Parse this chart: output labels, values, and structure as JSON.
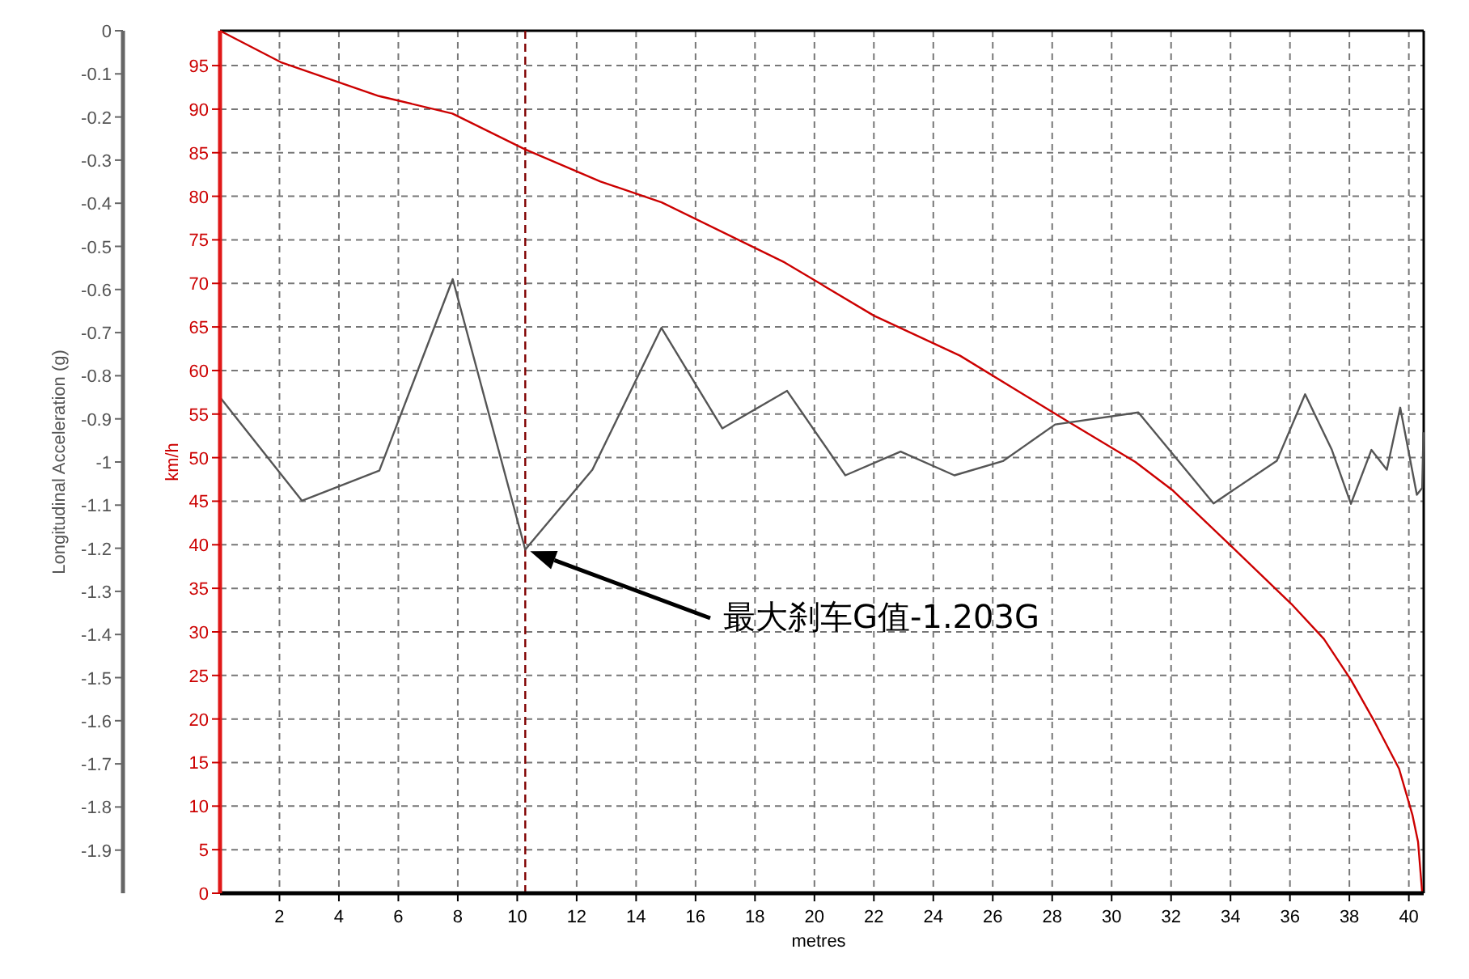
{
  "chart_data": {
    "type": "line",
    "xlabel": "metres",
    "ylabel": "km/h",
    "y2label": "Longitudinal Acceleration (g)",
    "xlim": [
      0,
      40.5
    ],
    "xticks": [
      2,
      4,
      6,
      8,
      10,
      12,
      14,
      16,
      18,
      20,
      22,
      24,
      26,
      28,
      30,
      32,
      34,
      36,
      38,
      40
    ],
    "ylim": [
      0,
      99
    ],
    "yticks": [
      0,
      5,
      10,
      15,
      20,
      25,
      30,
      35,
      40,
      45,
      50,
      55,
      60,
      65,
      70,
      75,
      80,
      85,
      90,
      95
    ],
    "y2lim": [
      -2,
      0
    ],
    "y2ticks": [
      0,
      -0.1,
      -0.2,
      -0.3,
      -0.4,
      -0.5,
      -0.6,
      -0.7,
      -0.8,
      -0.9,
      -1,
      -1.1,
      -1.2,
      -1.3,
      -1.4,
      -1.5,
      -1.6,
      -1.7,
      -1.8,
      -1.9
    ],
    "grid": true,
    "line_style": "solid",
    "series": [
      {
        "color": "#cc0000",
        "x": [
          0,
          2.04,
          5.35,
          7.82,
          10.25,
          12.8,
          14.86,
          19.0,
          22,
          24.9,
          28.6,
          30.8,
          32.07,
          34.07,
          36.05,
          37.14,
          38.05,
          38.86,
          39.67,
          40.12,
          40.31,
          40.45
        ],
        "values": [
          99,
          95.4,
          91.5,
          89.5,
          85.4,
          81.7,
          79.3,
          72.4,
          66.3,
          61.7,
          54.0,
          49.5,
          46.2,
          39.7,
          33.2,
          29.2,
          24.5,
          19.6,
          14.3,
          9.0,
          5.9,
          0
        ]
      },
      {
        "color": "#555555",
        "axis": "y2",
        "x": [
          0,
          2.76,
          5.36,
          7.83,
          10.27,
          12.53,
          14.85,
          16.9,
          19.08,
          21.04,
          22.9,
          24.71,
          26.34,
          28.1,
          30.9,
          33.43,
          35.56,
          36.51,
          37.41,
          38.05,
          38.74,
          39.26,
          39.71,
          40.27,
          40.45,
          40.49
        ],
        "values": [
          -0.85,
          -1.09,
          -1.02,
          -0.576,
          -1.203,
          -1.018,
          -0.689,
          -0.922,
          -0.835,
          -1.031,
          -0.976,
          -1.031,
          -0.998,
          -0.913,
          -0.885,
          -1.096,
          -0.997,
          -0.843,
          -0.972,
          -1.097,
          -0.972,
          -1.018,
          -0.874,
          -1.076,
          -1.06,
          -0.931
        ]
      }
    ],
    "ref_lines": [
      {
        "axis": "x",
        "value": 10.27,
        "color": "#800000",
        "line_style": "dashed"
      }
    ],
    "annotations": [
      "最大刹车G值-1.203G"
    ]
  }
}
